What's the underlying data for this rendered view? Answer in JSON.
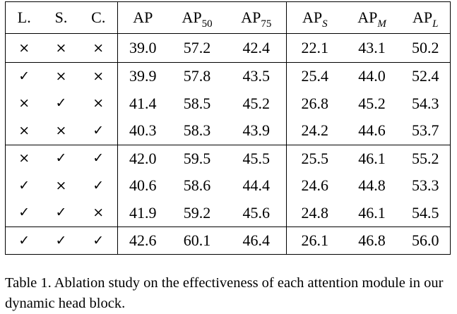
{
  "table": {
    "headers": [
      {
        "main": "L.",
        "sub": ""
      },
      {
        "main": "S.",
        "sub": ""
      },
      {
        "main": "C.",
        "sub": ""
      },
      {
        "main": "AP",
        "sub": ""
      },
      {
        "main": "AP",
        "sub": "50"
      },
      {
        "main": "AP",
        "sub": "75"
      },
      {
        "main": "AP",
        "sub": "S"
      },
      {
        "main": "AP",
        "sub": "M"
      },
      {
        "main": "AP",
        "sub": "L"
      }
    ],
    "rows": [
      [
        "×",
        "×",
        "×",
        "39.0",
        "57.2",
        "42.4",
        "22.1",
        "43.1",
        "50.2"
      ],
      [
        "✓",
        "×",
        "×",
        "39.9",
        "57.8",
        "43.5",
        "25.4",
        "44.0",
        "52.4"
      ],
      [
        "×",
        "✓",
        "×",
        "41.4",
        "58.5",
        "45.2",
        "26.8",
        "45.2",
        "54.3"
      ],
      [
        "×",
        "×",
        "✓",
        "40.3",
        "58.3",
        "43.9",
        "24.2",
        "44.6",
        "53.7"
      ],
      [
        "×",
        "✓",
        "✓",
        "42.0",
        "59.5",
        "45.5",
        "25.5",
        "46.1",
        "55.2"
      ],
      [
        "✓",
        "×",
        "✓",
        "40.6",
        "58.6",
        "44.4",
        "24.6",
        "44.8",
        "53.3"
      ],
      [
        "✓",
        "✓",
        "×",
        "41.9",
        "59.2",
        "45.6",
        "24.8",
        "46.1",
        "54.5"
      ],
      [
        "✓",
        "✓",
        "✓",
        "42.6",
        "60.1",
        "46.4",
        "26.1",
        "46.8",
        "56.0"
      ]
    ]
  },
  "caption": "Table 1. Ablation study on the effectiveness of each attention module in our dynamic head block."
}
